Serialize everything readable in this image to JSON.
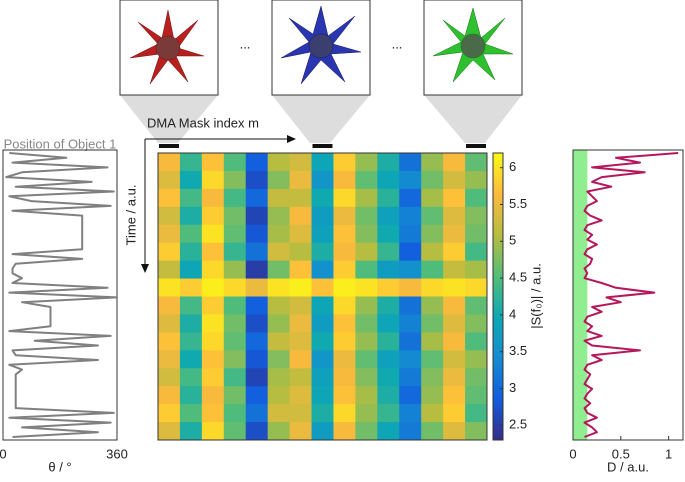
{
  "figure": {
    "ellipses": [
      "...",
      "..."
    ]
  },
  "chart_data": [
    {
      "type": "line",
      "orientation": "vertical",
      "title": "Position of Object 1",
      "xlabel": "θ / °",
      "xlim": [
        0,
        360
      ],
      "xticks": [
        0,
        360
      ],
      "color": "#808080",
      "values": [
        20,
        200,
        30,
        330,
        60,
        10,
        280,
        40,
        350,
        20,
        90,
        340,
        30,
        250,
        250,
        250,
        250,
        250,
        250,
        250,
        250,
        30,
        250,
        40,
        30,
        30,
        60,
        30,
        330,
        20,
        360,
        60,
        150,
        150,
        150,
        150,
        150,
        20,
        340,
        100,
        300,
        30,
        40,
        300,
        20,
        60,
        40,
        40,
        40,
        40,
        40,
        40,
        40,
        40,
        350,
        20,
        340,
        60,
        300,
        30
      ]
    },
    {
      "type": "heatmap",
      "xlabel": "DMA Mask index m",
      "ylabel": "Time / a.u.",
      "colormap": "parula",
      "marked_columns": [
        0,
        7,
        14
      ],
      "clim": [
        2.3,
        6.2
      ],
      "cticks": [
        2.5,
        3,
        3.5,
        4,
        4.5,
        5,
        5.5,
        6
      ],
      "clabel": "|S(f₀)| / a.u.",
      "values": [
        [
          5.6,
          4.3,
          5.7,
          4.5,
          2.9,
          5.1,
          5.3,
          3.9,
          5.8,
          4.9,
          4.1,
          3.1,
          4.9,
          5.6,
          4.6
        ],
        [
          5.4,
          4.0,
          5.9,
          4.8,
          2.7,
          4.8,
          5.5,
          3.6,
          5.6,
          4.6,
          3.9,
          3.4,
          4.7,
          5.3,
          4.9
        ],
        [
          5.7,
          4.4,
          5.6,
          4.4,
          3.0,
          5.2,
          5.2,
          4.0,
          5.9,
          5.0,
          4.2,
          3.0,
          5.0,
          5.7,
          4.5
        ],
        [
          5.3,
          4.1,
          5.8,
          4.7,
          2.6,
          4.9,
          5.6,
          3.7,
          5.5,
          4.7,
          3.8,
          3.3,
          4.6,
          5.4,
          4.8
        ],
        [
          5.5,
          4.5,
          6.0,
          4.6,
          2.8,
          5.0,
          5.4,
          3.8,
          5.7,
          4.8,
          4.0,
          3.2,
          4.8,
          5.5,
          4.7
        ],
        [
          5.8,
          4.2,
          5.7,
          4.3,
          3.1,
          5.3,
          5.1,
          4.1,
          5.6,
          5.1,
          4.3,
          2.9,
          5.1,
          5.8,
          4.4
        ],
        [
          5.2,
          3.9,
          5.9,
          4.9,
          2.5,
          4.7,
          5.7,
          3.5,
          5.8,
          4.5,
          3.7,
          3.5,
          4.5,
          5.2,
          5.0
        ],
        [
          6.0,
          5.8,
          6.1,
          5.9,
          5.5,
          6.0,
          6.1,
          5.7,
          6.1,
          6.0,
          5.8,
          5.6,
          5.9,
          6.0,
          5.9
        ],
        [
          5.6,
          4.4,
          5.8,
          4.5,
          2.9,
          5.1,
          5.3,
          3.9,
          5.9,
          4.9,
          4.1,
          3.1,
          4.9,
          5.6,
          4.6
        ],
        [
          5.4,
          4.1,
          6.0,
          4.7,
          2.7,
          4.9,
          5.5,
          3.7,
          5.7,
          4.7,
          3.9,
          3.3,
          4.7,
          5.4,
          4.8
        ],
        [
          5.7,
          4.3,
          5.9,
          4.6,
          3.0,
          5.2,
          5.4,
          4.0,
          5.8,
          4.9,
          4.2,
          3.1,
          5.0,
          5.6,
          4.5
        ],
        [
          5.5,
          4.0,
          5.7,
          4.8,
          2.8,
          4.8,
          5.6,
          3.6,
          5.5,
          4.6,
          3.8,
          3.4,
          4.6,
          5.3,
          4.9
        ],
        [
          5.3,
          4.4,
          5.8,
          4.4,
          2.6,
          5.0,
          5.2,
          3.8,
          5.6,
          4.8,
          4.0,
          3.2,
          4.8,
          5.5,
          4.7
        ],
        [
          5.6,
          4.2,
          5.6,
          4.7,
          2.9,
          5.1,
          5.4,
          3.9,
          5.7,
          5.0,
          4.1,
          3.0,
          4.9,
          5.7,
          4.6
        ],
        [
          5.8,
          4.5,
          5.7,
          4.5,
          3.1,
          5.3,
          5.3,
          4.1,
          5.9,
          4.9,
          4.3,
          3.3,
          5.1,
          5.8,
          4.4
        ],
        [
          5.4,
          4.1,
          5.9,
          4.6,
          2.7,
          4.9,
          5.5,
          3.7,
          5.6,
          4.7,
          3.9,
          3.2,
          4.7,
          5.4,
          4.8
        ]
      ]
    },
    {
      "type": "line",
      "orientation": "vertical",
      "xlabel": "D / a.u.",
      "xlim": [
        0,
        1.15
      ],
      "xticks": [
        0,
        0.5,
        1
      ],
      "color": "#b5175c",
      "shaded_range": [
        0,
        0.15
      ],
      "shade_color": "#90ee90",
      "values": [
        1.1,
        0.45,
        0.7,
        0.2,
        0.75,
        0.3,
        0.2,
        0.4,
        0.15,
        0.2,
        0.25,
        0.15,
        0.12,
        0.18,
        0.3,
        0.15,
        0.12,
        0.2,
        0.15,
        0.25,
        0.15,
        0.12,
        0.2,
        0.18,
        0.12,
        0.15,
        0.12,
        0.3,
        0.45,
        0.85,
        0.35,
        0.5,
        0.2,
        0.3,
        0.15,
        0.12,
        0.2,
        0.15,
        0.3,
        0.12,
        0.2,
        0.7,
        0.2,
        0.3,
        0.15,
        0.12,
        0.18,
        0.15,
        0.12,
        0.2,
        0.15,
        0.12,
        0.18,
        0.12,
        0.15,
        0.25,
        0.12,
        0.2,
        0.25,
        0.12
      ]
    }
  ]
}
